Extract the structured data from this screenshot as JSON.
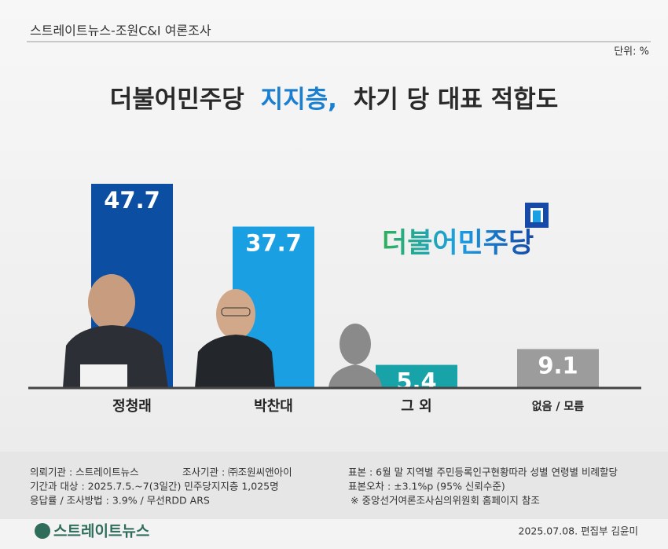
{
  "chart_data": {
    "type": "bar",
    "header": "스트레이트뉴스-조원C&I 여론조사",
    "unit": "단위: %",
    "title": [
      "더불어민주당",
      "지지층,",
      "차기 당 대표 적합도"
    ],
    "party_logo": "더불어민주당",
    "categories": [
      "정청래",
      "박찬대",
      "그 외",
      "없음 / 모름"
    ],
    "values": [
      47.7,
      37.7,
      5.4,
      9.1
    ],
    "colors": [
      "#0b4ea2",
      "#1a9fe3",
      "#17a3a8",
      "#9c9c9c"
    ],
    "notes": {
      "client": "의뢰기관 : 스트레이트뉴스",
      "agency": "조사기관 : ㈜조원씨앤아이",
      "period": "기간과 대상 : 2025.7.5.~7(3일간)  민주당지지층 1,025명",
      "method": "응답률 / 조사방법 : 3.9% / 무선RDD ARS",
      "sample": "표본 : 6월 말 지역별 주민등록인구현황따라 성별 연령별 비례할당",
      "error": "표본오차 : ±3.1%p (95% 신뢰수준)",
      "reference": "※ 중앙선거여론조사심의위원회 홈페이지 참조"
    },
    "footer": {
      "date_editor": "2025.07.08. 편집부 김윤미",
      "brand": "스트레이트뉴스"
    }
  }
}
